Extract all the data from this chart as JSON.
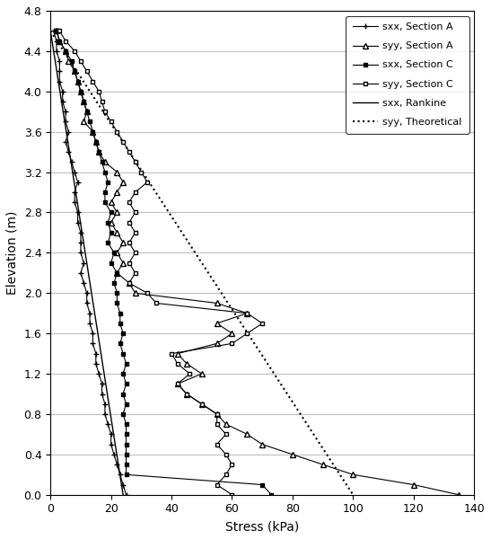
{
  "xlabel": "Stress (kPa)",
  "ylabel": "Elevation (m)",
  "xlim": [
    0,
    140
  ],
  "ylim": [
    0,
    4.8
  ],
  "xticks": [
    0,
    20,
    40,
    60,
    80,
    100,
    120,
    140
  ],
  "yticks": [
    0,
    0.4,
    0.8,
    1.2,
    1.6,
    2.0,
    2.4,
    2.8,
    3.2,
    3.6,
    4.0,
    4.4,
    4.8
  ],
  "sxx_rankine": {
    "stress": [
      0,
      24
    ],
    "elevation": [
      4.6,
      0
    ],
    "color": "black",
    "linestyle": "-",
    "linewidth": 1.0,
    "label": "sxx, Rankine"
  },
  "syy_theoretical": {
    "stress": [
      0,
      100
    ],
    "elevation": [
      4.6,
      0
    ],
    "color": "black",
    "linestyle": ":",
    "linewidth": 1.5,
    "label": "syy, Theoretical"
  },
  "sxx_sectionA": {
    "elevation": [
      4.6,
      4.5,
      4.4,
      4.3,
      4.2,
      4.1,
      4.0,
      3.9,
      3.8,
      3.7,
      3.6,
      3.5,
      3.4,
      3.3,
      3.2,
      3.1,
      3.0,
      2.9,
      2.8,
      2.7,
      2.6,
      2.5,
      2.4,
      2.3,
      2.2,
      2.1,
      2.0,
      1.9,
      1.8,
      1.7,
      1.6,
      1.5,
      1.4,
      1.3,
      1.2,
      1.1,
      1.0,
      0.9,
      0.8,
      0.7,
      0.6,
      0.5,
      0.4,
      0.3,
      0.2,
      0.1,
      0.0
    ],
    "stress": [
      1,
      2,
      2,
      3,
      3,
      3,
      4,
      4,
      5,
      5,
      6,
      5,
      6,
      7,
      8,
      9,
      8,
      8,
      9,
      9,
      10,
      10,
      10,
      11,
      10,
      11,
      12,
      12,
      13,
      13,
      14,
      14,
      15,
      15,
      16,
      17,
      17,
      18,
      18,
      19,
      20,
      20,
      21,
      22,
      23,
      24,
      25
    ],
    "color": "black",
    "linestyle": "-",
    "linewidth": 0.8,
    "marker": "+",
    "markersize": 4,
    "label": "sxx, Section A"
  },
  "syy_sectionA": {
    "elevation": [
      4.6,
      4.5,
      4.4,
      4.3,
      4.2,
      4.1,
      4.0,
      3.9,
      3.8,
      3.7,
      3.6,
      3.5,
      3.4,
      3.3,
      3.2,
      3.1,
      3.0,
      2.9,
      2.8,
      2.7,
      2.6,
      2.5,
      2.4,
      2.3,
      2.2,
      2.1,
      2.0,
      1.9,
      1.8,
      1.7,
      1.6,
      1.5,
      1.4,
      1.3,
      1.2,
      1.1,
      1.0,
      0.9,
      0.8,
      0.7,
      0.6,
      0.5,
      0.4,
      0.3,
      0.2,
      0.1,
      0.0
    ],
    "stress": [
      2,
      3,
      5,
      6,
      8,
      9,
      10,
      11,
      12,
      11,
      14,
      15,
      16,
      18,
      22,
      24,
      22,
      20,
      22,
      20,
      22,
      24,
      22,
      24,
      22,
      26,
      28,
      55,
      65,
      55,
      60,
      55,
      42,
      45,
      50,
      42,
      45,
      50,
      55,
      58,
      65,
      70,
      80,
      90,
      100,
      120,
      135
    ],
    "color": "black",
    "linestyle": "-",
    "linewidth": 0.8,
    "marker": "^",
    "markersize": 4,
    "markerfacecolor": "white",
    "label": "syy, Section A"
  },
  "sxx_sectionC": {
    "elevation": [
      4.6,
      4.5,
      4.4,
      4.3,
      4.2,
      4.1,
      4.0,
      3.9,
      3.8,
      3.7,
      3.6,
      3.5,
      3.4,
      3.3,
      3.2,
      3.1,
      3.0,
      2.9,
      2.8,
      2.7,
      2.6,
      2.5,
      2.4,
      2.3,
      2.2,
      2.1,
      2.0,
      1.9,
      1.8,
      1.7,
      1.6,
      1.5,
      1.4,
      1.3,
      1.2,
      1.1,
      1.0,
      0.9,
      0.8,
      0.7,
      0.6,
      0.5,
      0.4,
      0.3,
      0.2,
      0.1,
      0.0
    ],
    "stress": [
      2,
      3,
      5,
      7,
      8,
      9,
      10,
      11,
      12,
      13,
      14,
      15,
      16,
      17,
      18,
      19,
      18,
      18,
      20,
      19,
      20,
      19,
      21,
      20,
      22,
      21,
      22,
      22,
      23,
      23,
      24,
      23,
      24,
      25,
      24,
      25,
      24,
      25,
      24,
      25,
      25,
      25,
      25,
      25,
      25,
      70,
      73
    ],
    "color": "black",
    "linestyle": "-",
    "linewidth": 0.8,
    "marker": "s",
    "markersize": 3,
    "markerfacecolor": "black",
    "label": "sxx, Section C"
  },
  "syy_sectionC": {
    "elevation": [
      4.6,
      4.5,
      4.4,
      4.3,
      4.2,
      4.1,
      4.0,
      3.9,
      3.8,
      3.7,
      3.6,
      3.5,
      3.4,
      3.3,
      3.2,
      3.1,
      3.0,
      2.9,
      2.8,
      2.7,
      2.6,
      2.5,
      2.4,
      2.3,
      2.2,
      2.1,
      2.0,
      1.9,
      1.8,
      1.7,
      1.6,
      1.5,
      1.4,
      1.3,
      1.2,
      1.1,
      1.0,
      0.9,
      0.8,
      0.7,
      0.6,
      0.5,
      0.4,
      0.3,
      0.2,
      0.1,
      0.0
    ],
    "stress": [
      3,
      5,
      8,
      10,
      12,
      14,
      16,
      17,
      18,
      20,
      22,
      24,
      26,
      28,
      30,
      32,
      28,
      26,
      28,
      26,
      28,
      26,
      28,
      26,
      28,
      26,
      32,
      35,
      65,
      70,
      65,
      60,
      40,
      42,
      46,
      42,
      45,
      50,
      55,
      55,
      58,
      55,
      58,
      60,
      58,
      55,
      60
    ],
    "color": "black",
    "linestyle": "-",
    "linewidth": 0.8,
    "marker": "s",
    "markersize": 3,
    "markerfacecolor": "white",
    "label": "syy, Section C"
  },
  "grid_color": "#c0c0c0",
  "font_size": 10
}
